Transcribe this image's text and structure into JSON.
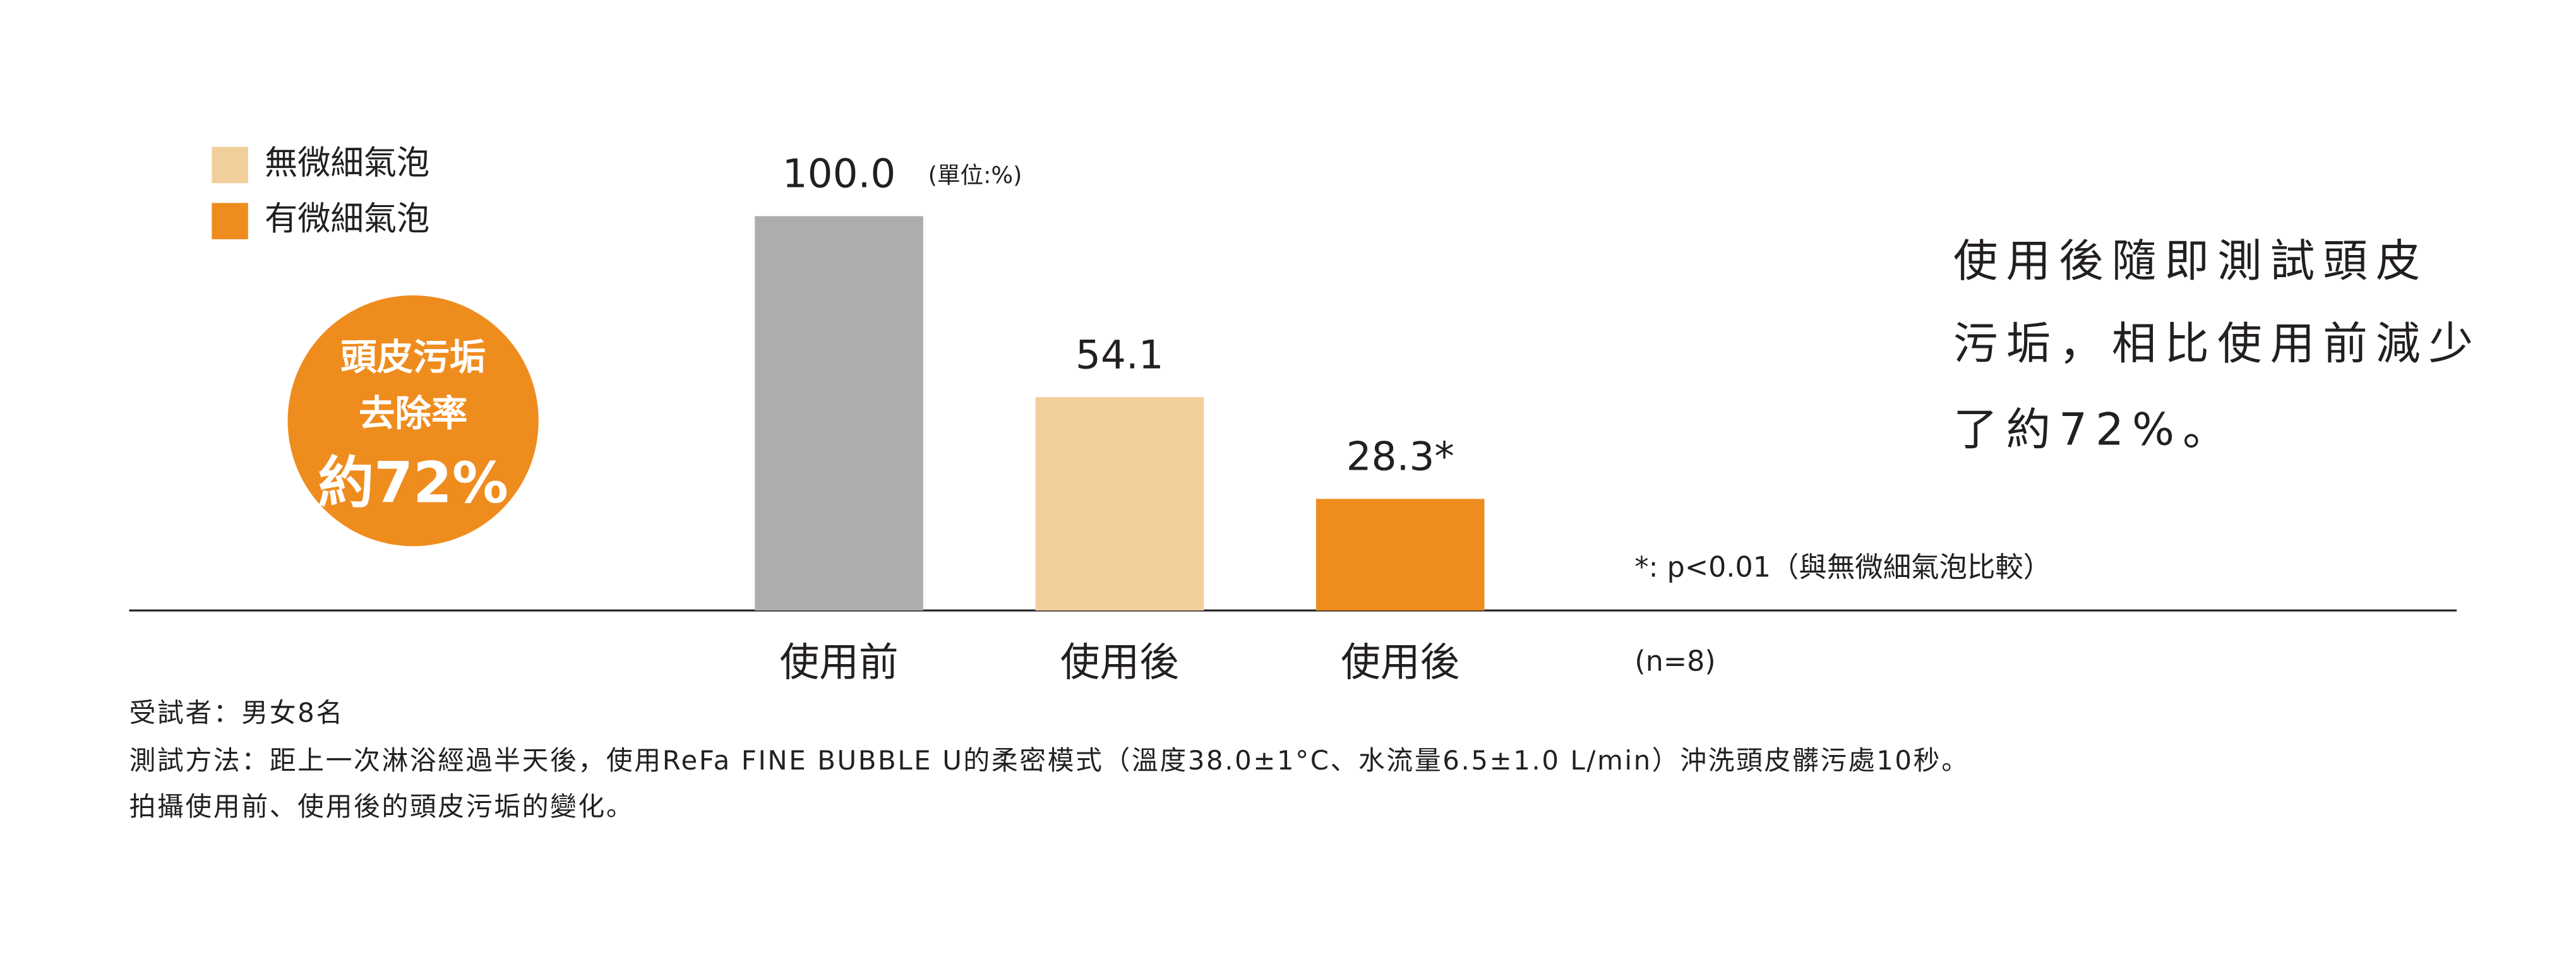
{
  "chart_data": {
    "type": "bar",
    "categories": [
      "使用前",
      "使用後",
      "使用後"
    ],
    "values": [
      100,
      54.1,
      28.3
    ],
    "value_labels": [
      "100.0",
      "54.1",
      "28.3*"
    ],
    "colors": [
      "#aeadae",
      "#f1cf9c",
      "#ef8c1e"
    ],
    "ylim": [
      0,
      100
    ],
    "unit_note": "(單位:%)",
    "legend": [
      {
        "name": "無微細氣泡",
        "color": "#f1cf9c"
      },
      {
        "name": "有微細氣泡",
        "color": "#ef8c1e"
      }
    ],
    "badge": {
      "lines": [
        "頭皮污垢",
        "去除率",
        "約72%"
      ],
      "color": "#ef8c1e"
    },
    "summary": [
      "使用後隨即測試頭皮",
      "污垢，相比使用前減少",
      "了約72%。"
    ],
    "significance_note": "*: p<0.01（與無微細氣泡比較）",
    "sample_note": "(n=8)",
    "footnotes": [
      "受試者：男女8名",
      "測試方法：距上一次淋浴經過半天後，使用ReFa FINE BUBBLE U的柔密模式（溫度38.0±1°C、水流量6.5±1.0 L/min）沖洗頭皮髒污處10秒。",
      "拍攝使用前、使用後的頭皮污垢的變化。"
    ]
  }
}
